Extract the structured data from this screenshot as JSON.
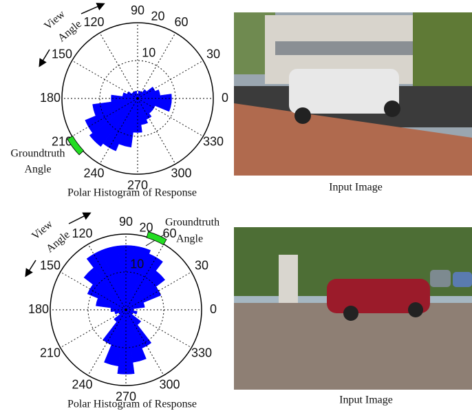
{
  "chart_data": [
    {
      "type": "polar-bar",
      "title": "Polar Histogram of  Response",
      "color": "#0000ff",
      "x": [
        0,
        15,
        30,
        45,
        60,
        75,
        90,
        105,
        120,
        135,
        150,
        165,
        180,
        195,
        210,
        225,
        240,
        255,
        270,
        285,
        300,
        315,
        330,
        345
      ],
      "values": [
        9,
        6,
        5,
        3,
        2,
        2,
        1,
        2,
        2,
        2,
        3,
        4,
        7,
        12,
        15,
        16,
        15,
        13,
        9,
        7,
        6,
        5,
        5,
        9
      ],
      "rlim": [
        0,
        20
      ],
      "rticks": [
        10,
        20
      ],
      "thetaticks": [
        0,
        30,
        60,
        90,
        120,
        150,
        180,
        210,
        240,
        270,
        300,
        330
      ],
      "groundtruth_angle": 217,
      "groundtruth_color": "#22dd22",
      "annotation": [
        "Groundtruth",
        "Angle"
      ],
      "view_label": [
        "View",
        "Angle"
      ]
    },
    {
      "type": "polar-bar",
      "title": "Polar Histogram of  Response",
      "color": "#0000ff",
      "x": [
        0,
        15,
        30,
        45,
        60,
        75,
        90,
        105,
        120,
        135,
        150,
        165,
        180,
        195,
        210,
        225,
        240,
        255,
        270,
        285,
        300,
        315,
        330,
        345
      ],
      "values": [
        2,
        5,
        10,
        13,
        16,
        17,
        17,
        17,
        17,
        14,
        11,
        8,
        4,
        3,
        2,
        4,
        10,
        15,
        17,
        14,
        11,
        5,
        2,
        3
      ],
      "rlim": [
        0,
        20
      ],
      "rticks": [
        10,
        20
      ],
      "thetaticks": [
        0,
        30,
        60,
        90,
        120,
        150,
        180,
        210,
        240,
        270,
        300,
        330
      ],
      "groundtruth_angle": 67,
      "groundtruth_color": "#22dd22",
      "annotation": [
        "Groundtruth",
        "Angle"
      ],
      "view_label": [
        "View",
        "Angle"
      ]
    }
  ],
  "images": [
    {
      "caption": "Input Image"
    },
    {
      "caption": "Input Image"
    }
  ]
}
